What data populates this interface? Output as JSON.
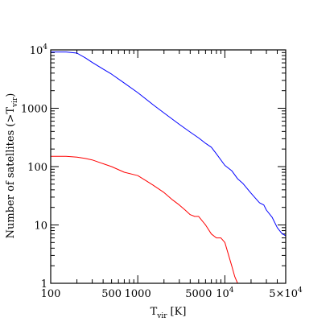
{
  "chart_data": {
    "type": "line",
    "xlabel": "T",
    "xlabel_sub": "vir",
    "xlabel_unit": "[K]",
    "ylabel": "Number of satellites (>T",
    "ylabel_sub": "vir",
    "ylabel_end": ")",
    "x_scale": "log",
    "y_scale": "log",
    "xlim": [
      100,
      50000
    ],
    "ylim": [
      1,
      10000
    ],
    "grid": false,
    "legend": "none",
    "x_ticklabels": [
      {
        "value": 100,
        "label": "100"
      },
      {
        "value": 500,
        "label": "500"
      },
      {
        "value": 1000,
        "label": "1000"
      },
      {
        "value": 5000,
        "label": "5000"
      },
      {
        "value": 10000,
        "label": "10",
        "exp": "4"
      },
      {
        "value": 50000,
        "label": "5×10",
        "exp": "4"
      }
    ],
    "y_ticklabels": [
      {
        "value": 1,
        "label": "1"
      },
      {
        "value": 10,
        "label": "10"
      },
      {
        "value": 100,
        "label": "100"
      },
      {
        "value": 1000,
        "label": "1000"
      },
      {
        "value": 10000,
        "label": "10",
        "exp": "4"
      }
    ],
    "series": [
      {
        "color": "#0000ff",
        "x": [
          100,
          150,
          200,
          250,
          300,
          400,
          500,
          700,
          1000,
          1500,
          2000,
          3000,
          4000,
          5000,
          6000,
          7000,
          8000,
          10000,
          12000,
          14000,
          16000,
          20000,
          25000,
          28000,
          30000,
          35000,
          40000,
          45000,
          50000
        ],
        "y": [
          9200,
          9200,
          8800,
          7300,
          6100,
          4700,
          3850,
          2700,
          1850,
          1150,
          830,
          530,
          390,
          310,
          250,
          215,
          165,
          105,
          85,
          62,
          52,
          35,
          24,
          22,
          18,
          13.5,
          9,
          7.2,
          6.5
        ]
      },
      {
        "color": "#ff0000",
        "x": [
          100,
          150,
          200,
          250,
          300,
          400,
          500,
          700,
          1000,
          1300,
          1500,
          2000,
          2500,
          3000,
          3500,
          4000,
          4500,
          5000,
          6000,
          7000,
          8000,
          9000,
          10000,
          12000,
          13000,
          14000
        ],
        "y": [
          150,
          150,
          145,
          138,
          130,
          112,
          100,
          80,
          70,
          55,
          48,
          36,
          27,
          22,
          18,
          15,
          14,
          14,
          10,
          7,
          6,
          6,
          5,
          2,
          1.3,
          1
        ]
      }
    ]
  }
}
